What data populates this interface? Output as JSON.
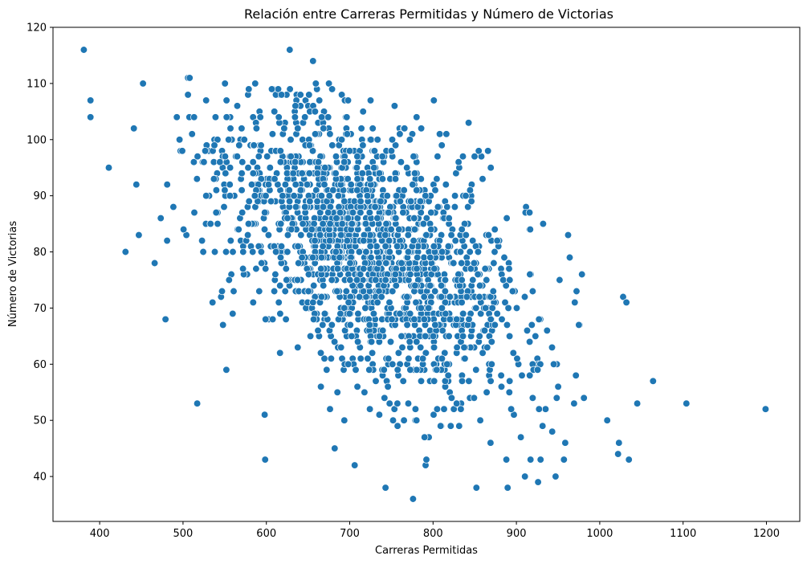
{
  "chart_data": {
    "type": "scatter",
    "title": "Relación entre Carreras Permitidas y Número de Victorias",
    "xlabel": "Carreras Permitidas",
    "ylabel": "Número de Victorias",
    "xlim": [
      344,
      1240
    ],
    "ylim": [
      32,
      120
    ],
    "xticks": [
      400,
      500,
      600,
      700,
      800,
      900,
      1000,
      1100,
      1200
    ],
    "yticks": [
      40,
      50,
      60,
      70,
      80,
      90,
      100,
      110,
      120
    ],
    "xtick_labels": [
      "400",
      "500",
      "600",
      "700",
      "800",
      "900",
      "1000",
      "1100",
      "1200"
    ],
    "ytick_labels": [
      "40",
      "50",
      "60",
      "70",
      "80",
      "90",
      "100",
      "110",
      "120"
    ],
    "grid": false,
    "marker_color": "#1f77b4",
    "cluster": {
      "n": 1800,
      "center_x": 720,
      "center_y": 81,
      "sd_x": 95,
      "sd_y": 11,
      "slope": -0.07
    },
    "series": [
      {
        "x": [
          381,
          389,
          389,
          411,
          431,
          441,
          444,
          447,
          452,
          466,
          479,
          481,
          497,
          506,
          508,
          513,
          517,
          548,
          552,
          558,
          578,
          598,
          608,
          628,
          647,
          656,
          682,
          706,
          725,
          743,
          752,
          776,
          791,
          792,
          795,
          808,
          852,
          858,
          869,
          888,
          897,
          917,
          926,
          929,
          947,
          957,
          962,
          964,
          970,
          981,
          1009,
          1022,
          1023,
          1028,
          1032,
          1035,
          1045,
          1064,
          1104,
          1199
        ],
        "y": [
          116,
          107,
          104,
          95,
          80,
          102,
          92,
          83,
          110,
          78,
          68,
          92,
          98,
          111,
          111,
          96,
          53,
          67,
          59,
          76,
          108,
          51,
          109,
          116,
          107,
          114,
          45,
          42,
          107,
          38,
          50,
          36,
          42,
          43,
          47,
          101,
          38,
          97,
          46,
          43,
          51,
          43,
          39,
          43,
          40,
          43,
          83,
          79,
          71,
          54,
          50,
          44,
          46,
          72,
          71,
          43,
          53,
          57,
          53,
          52
        ]
      }
    ]
  }
}
